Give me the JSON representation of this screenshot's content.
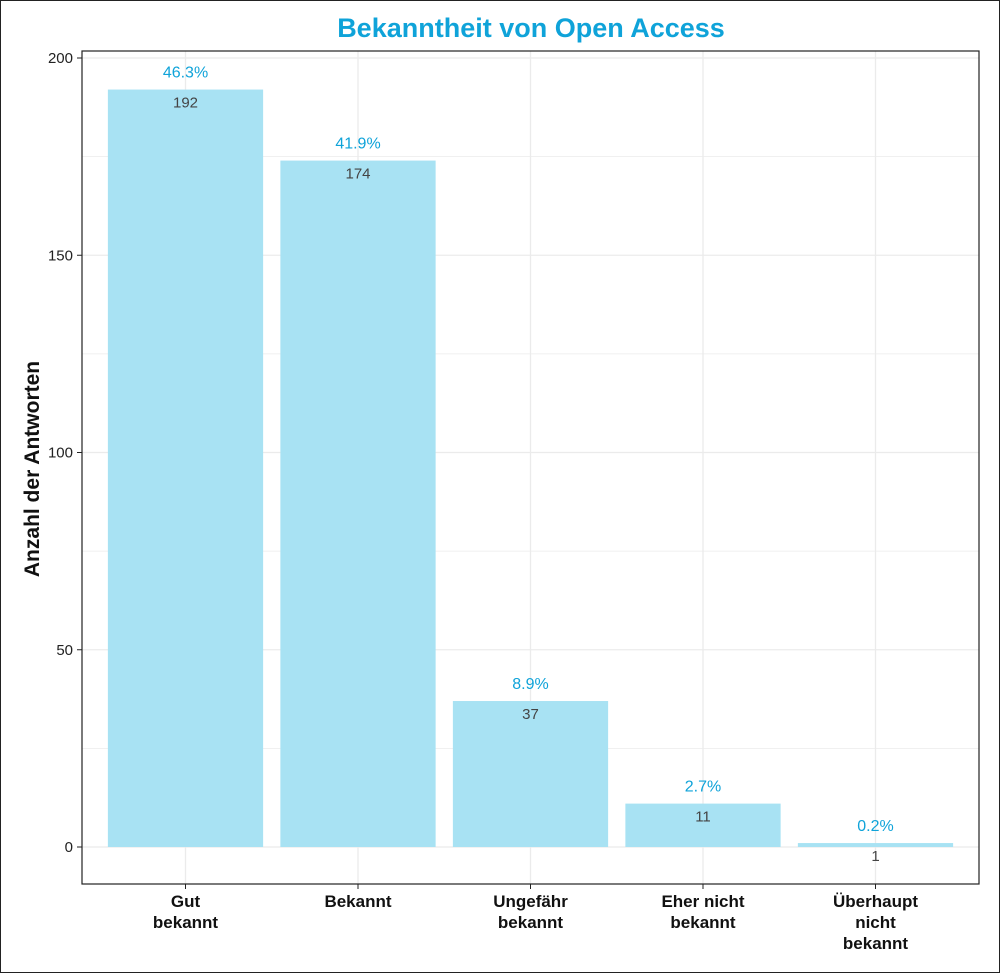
{
  "colors": {
    "accent": "#0fa3d9",
    "bar": "#a8e2f3",
    "grid": "#ebebeb",
    "axis": "#222222"
  },
  "chart_data": {
    "type": "bar",
    "title": "Bekanntheit von Open Access",
    "ylabel": "Anzahl der Antworten",
    "xlabel": "",
    "ylim": [
      0,
      205
    ],
    "yticks": [
      0,
      50,
      100,
      150,
      200
    ],
    "grid": true,
    "legend": "none",
    "categories": [
      [
        "Gut",
        "bekannt"
      ],
      [
        "Bekannt"
      ],
      [
        "Ungefähr",
        "bekannt"
      ],
      [
        "Eher nicht",
        "bekannt"
      ],
      [
        "Überhaupt",
        "nicht",
        "bekannt"
      ]
    ],
    "values": [
      192,
      174,
      37,
      11,
      1
    ],
    "percent_labels": [
      "46.3%",
      "41.9%",
      "8.9%",
      "2.7%",
      "0.2%"
    ]
  }
}
